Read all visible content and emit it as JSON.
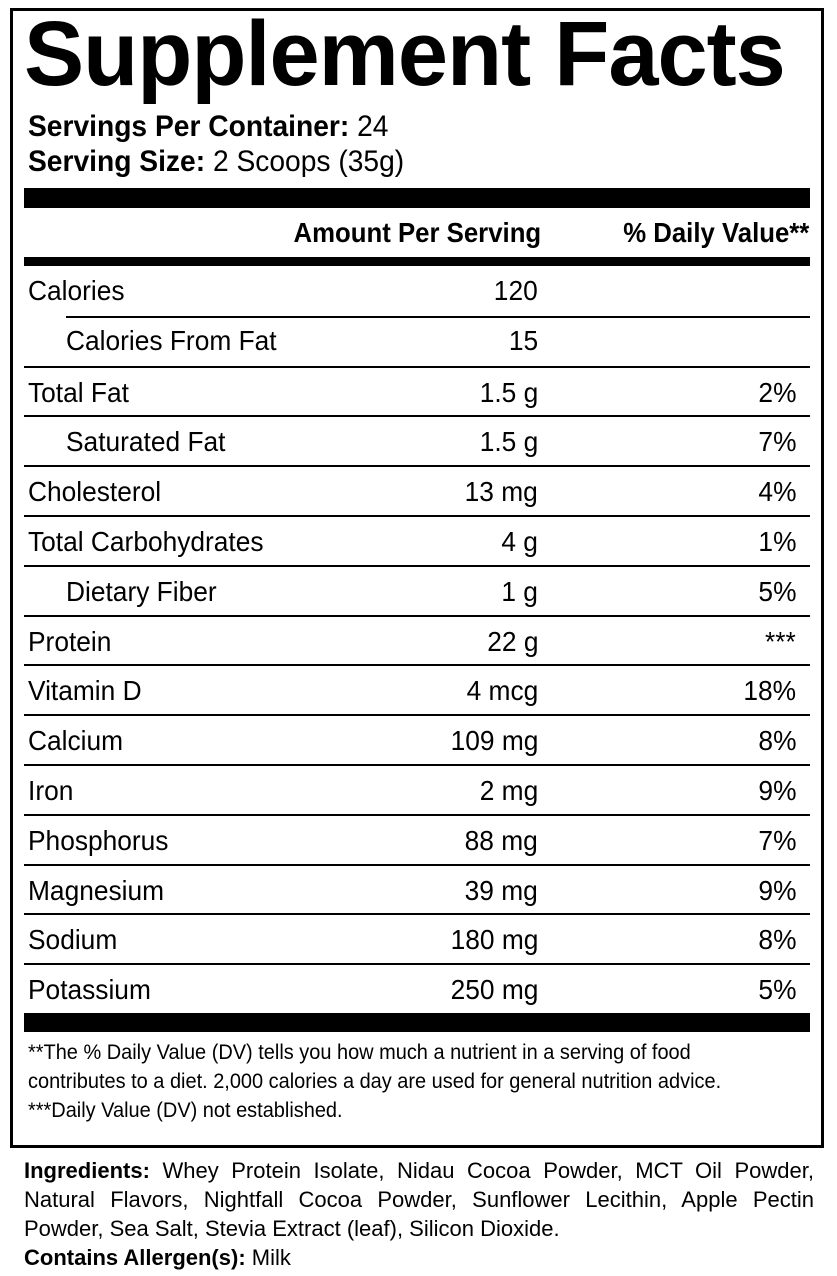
{
  "title": "Supplement Facts",
  "servings": {
    "per_container_label": "Servings Per Container:",
    "per_container_value": "24",
    "size_label": "Serving Size:",
    "size_value": "2 Scoops (35g)"
  },
  "header": {
    "amount": "Amount Per Serving",
    "dv": "% Daily Value**"
  },
  "rows": [
    {
      "name": "Calories",
      "amount": "120",
      "dv": ""
    },
    {
      "name": "Calories From Fat",
      "amount": "15",
      "dv": ""
    },
    {
      "name": "Total Fat",
      "amount": "1.5 g",
      "dv": "2%"
    },
    {
      "name": "Saturated Fat",
      "amount": "1.5 g",
      "dv": "7%"
    },
    {
      "name": "Cholesterol",
      "amount": "13 mg",
      "dv": "4%"
    },
    {
      "name": "Total Carbohydrates",
      "amount": "4 g",
      "dv": "1%"
    },
    {
      "name": "Dietary Fiber",
      "amount": "1 g",
      "dv": "5%"
    },
    {
      "name": "Protein",
      "amount": "22 g",
      "dv": "***"
    },
    {
      "name": "Vitamin D",
      "amount": "4 mcg",
      "dv": "18%"
    },
    {
      "name": "Calcium",
      "amount": "109 mg",
      "dv": "8%"
    },
    {
      "name": "Iron",
      "amount": "2 mg",
      "dv": "9%"
    },
    {
      "name": "Phosphorus",
      "amount": "88 mg",
      "dv": "7%"
    },
    {
      "name": "Magnesium",
      "amount": "39 mg",
      "dv": "9%"
    },
    {
      "name": "Sodium",
      "amount": "180 mg",
      "dv": "8%"
    },
    {
      "name": "Potassium",
      "amount": "250 mg",
      "dv": "5%"
    }
  ],
  "footnotes": {
    "dv_note": "**The % Daily Value (DV) tells you how much a nutrient in a serving of food contributes to a diet. 2,000 calories a day are used for general nutrition advice.",
    "not_established": "***Daily Value (DV) not established."
  },
  "ingredients": {
    "label": "Ingredients:",
    "text": "Whey Protein Isolate, Nidau Cocoa Powder, MCT Oil Powder, Natural Flavors, Nightfall Cocoa Powder, Sunflower Lecithin, Apple Pectin Powder, Sea Salt, Stevia Extract (leaf), Silicon Dioxide."
  },
  "allergens": {
    "label": "Contains Allergen(s):",
    "text": "Milk"
  }
}
